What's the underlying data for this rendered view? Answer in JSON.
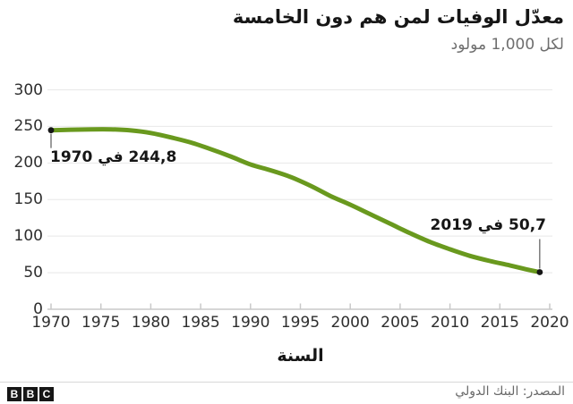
{
  "header": {
    "title": "معدّل الوفيات لمن هم دون الخامسة",
    "subtitle": "لكل 1,000 مولود"
  },
  "chart_data": {
    "type": "line",
    "title": "معدّل الوفيات لمن هم دون الخامسة",
    "subtitle": "لكل 1,000 مولود",
    "xlabel": "السنة",
    "ylabel": "لكل 1,000 مولود",
    "xlim": [
      1970,
      2020
    ],
    "ylim": [
      0,
      300
    ],
    "x_ticks": [
      1970,
      1975,
      1980,
      1985,
      1990,
      1995,
      2000,
      2005,
      2010,
      2015,
      2020
    ],
    "y_ticks": [
      0,
      50,
      100,
      150,
      200,
      250,
      300
    ],
    "grid": "horizontal",
    "legend": "none",
    "line_color": "#69991e",
    "x": [
      1970,
      1972,
      1974,
      1976,
      1978,
      1980,
      1982,
      1984,
      1986,
      1988,
      1990,
      1992,
      1994,
      1996,
      1998,
      2000,
      2002,
      2004,
      2006,
      2008,
      2010,
      2012,
      2014,
      2016,
      2018,
      2019
    ],
    "y": [
      244.8,
      245.5,
      246,
      246,
      244.5,
      241,
      235,
      228,
      219,
      209,
      198,
      190,
      181,
      169,
      155,
      143,
      130,
      117,
      104,
      92,
      82,
      73,
      66,
      60,
      53.5,
      50.7
    ],
    "annotations": [
      {
        "x": 1970,
        "y": 244.8,
        "label": "244,8 في 1970",
        "position": "below"
      },
      {
        "x": 2019,
        "y": 50.7,
        "label": "50,7 في 2019",
        "position": "above"
      }
    ]
  },
  "footer": {
    "source": "المصدر: البنك الدولي",
    "logo_letters": [
      "B",
      "B",
      "C"
    ]
  },
  "colors": {
    "line": "#69991e",
    "grid": "#e8e8e8",
    "axis": "#c9c9c9",
    "text_dark": "#161616",
    "text_muted": "#6e6e6e",
    "dot": "#161616"
  }
}
